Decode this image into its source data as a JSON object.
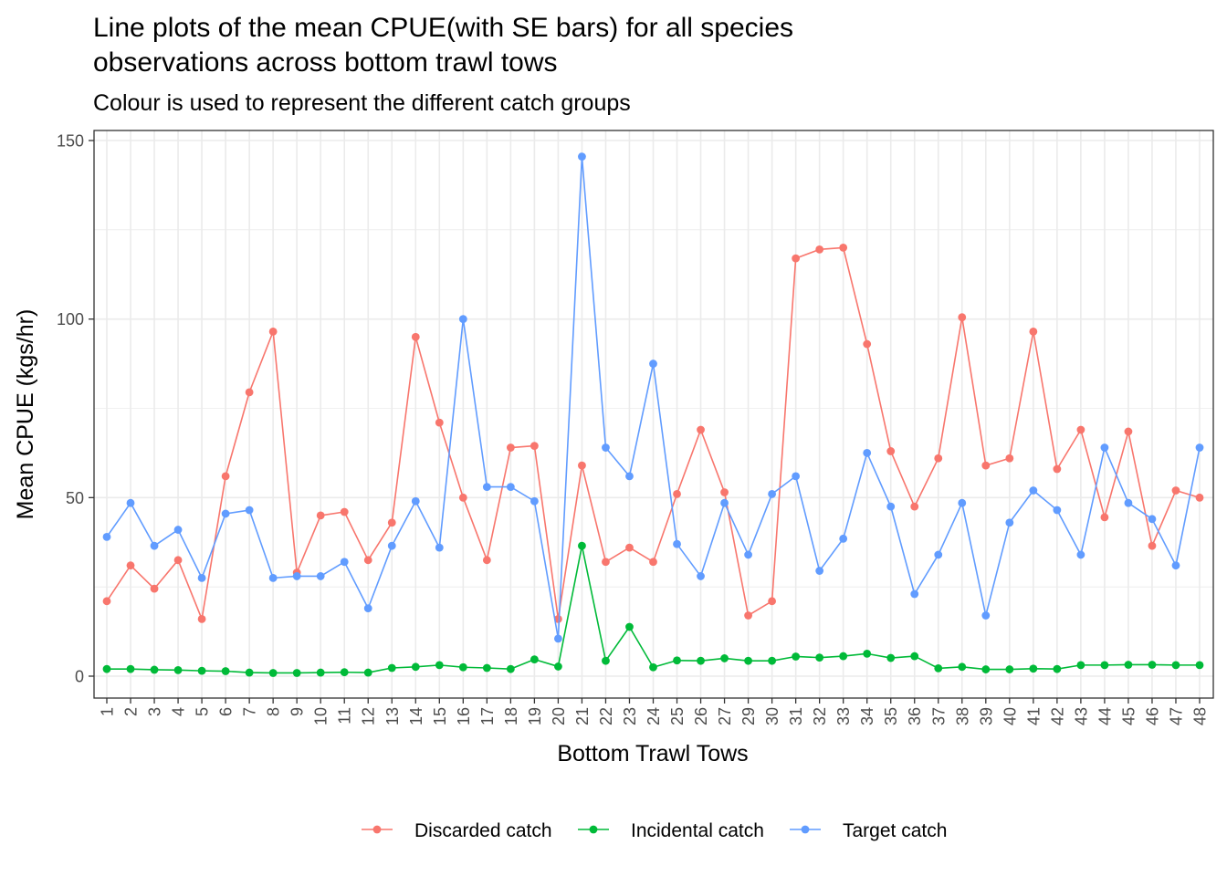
{
  "chart_data": {
    "type": "line",
    "title": "Line plots of the mean CPUE(with SE bars) for all species",
    "title_line2": "observations across bottom trawl tows",
    "subtitle": "Colour is used to represent the different catch groups",
    "xlabel": "Bottom Trawl Tows",
    "ylabel": "Mean CPUE (kgs/hr)",
    "ylim": [
      -6,
      153
    ],
    "yticks": [
      0,
      50,
      100,
      150
    ],
    "grid": true,
    "legend_position": "bottom",
    "categories": [
      "1",
      "2",
      "3",
      "4",
      "5",
      "6",
      "7",
      "8",
      "9",
      "10",
      "11",
      "12",
      "13",
      "14",
      "15",
      "16",
      "17",
      "18",
      "19",
      "20",
      "21",
      "22",
      "23",
      "24",
      "25",
      "26",
      "27",
      "29",
      "30",
      "31",
      "32",
      "33",
      "34",
      "35",
      "36",
      "37",
      "38",
      "39",
      "40",
      "41",
      "42",
      "43",
      "44",
      "45",
      "46",
      "47",
      "48"
    ],
    "series": [
      {
        "name": "Discarded catch",
        "color": "#F8766D",
        "values": [
          21,
          31,
          24.5,
          32.5,
          16,
          56,
          79.5,
          96.5,
          29,
          45,
          46,
          32.5,
          43,
          95,
          71,
          50,
          32.5,
          64,
          64.5,
          16,
          59,
          32,
          36,
          32,
          51,
          69,
          51.5,
          17,
          21,
          117,
          119.5,
          120,
          93,
          63,
          47.5,
          61,
          100.5,
          59,
          61,
          96.5,
          58,
          69,
          44.5,
          68.5,
          36.5,
          52,
          50
        ]
      },
      {
        "name": "Incidental catch",
        "color": "#00BA38",
        "values": [
          2,
          2,
          1.8,
          1.7,
          1.5,
          1.4,
          1,
          0.9,
          0.9,
          1,
          1.1,
          1,
          2.3,
          2.6,
          3.1,
          2.5,
          2.3,
          2,
          4.7,
          2.7,
          36.5,
          4.3,
          13.8,
          2.5,
          4.4,
          4.3,
          5,
          4.3,
          4.3,
          5.5,
          5.2,
          5.6,
          6.3,
          5.1,
          5.6,
          2.2,
          2.6,
          1.9,
          1.9,
          2.1,
          2,
          3.1,
          3.1,
          3.2,
          3.2,
          3.1,
          3.1
        ]
      },
      {
        "name": "Target catch",
        "color": "#619CFF",
        "values": [
          39,
          48.5,
          36.5,
          41,
          27.5,
          45.5,
          46.5,
          27.5,
          28,
          28,
          32,
          19,
          36.5,
          49,
          36,
          100,
          53,
          53,
          49,
          10.5,
          145.5,
          64,
          56,
          87.5,
          37,
          28,
          48.5,
          34,
          51,
          56,
          29.5,
          38.5,
          62.5,
          47.5,
          23,
          34,
          48.5,
          17,
          43,
          52,
          46.5,
          34,
          64,
          48.5,
          44,
          31,
          64
        ]
      }
    ]
  }
}
